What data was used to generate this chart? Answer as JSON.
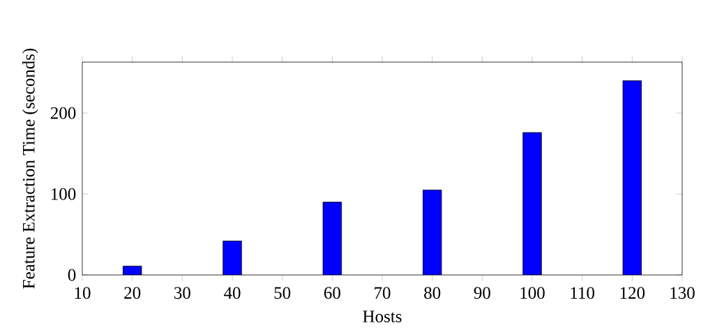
{
  "chart_data": {
    "type": "bar",
    "xlabel": "Hosts",
    "ylabel": "Feature Extraction Time (seconds)",
    "x": [
      20,
      40,
      60,
      80,
      100,
      120
    ],
    "values": [
      11,
      42,
      90,
      105,
      176,
      240
    ],
    "color": "#0000ff",
    "xlim": [
      10,
      130
    ],
    "ylim": [
      0,
      263
    ],
    "xticks": [
      10,
      20,
      30,
      40,
      50,
      60,
      70,
      80,
      90,
      100,
      110,
      120,
      130
    ],
    "yticks": [
      0,
      100,
      200
    ]
  }
}
